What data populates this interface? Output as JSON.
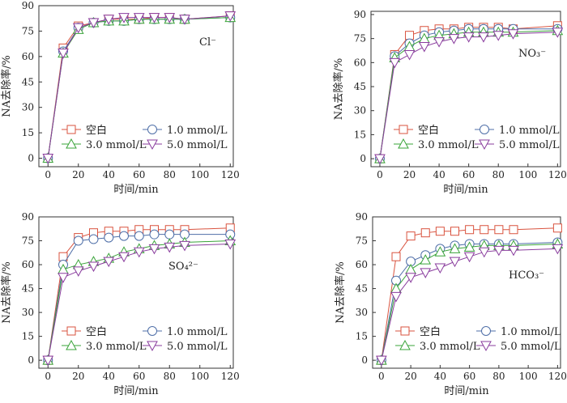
{
  "figure": {
    "background": "#ffffff"
  },
  "styles": {
    "blank": {
      "color": "#d9533f",
      "marker": "square"
    },
    "c1": {
      "color": "#4f6fa8",
      "marker": "circle"
    },
    "c3": {
      "color": "#3aa43a",
      "marker": "triangle-up"
    },
    "c5": {
      "color": "#8a3d9e",
      "marker": "triangle-down"
    }
  },
  "chart_data": [
    {
      "type": "line",
      "ion_label": "Cl⁻",
      "xlabel": "时间/min",
      "ylabel": "NA去除率/%",
      "xlim": [
        -6,
        122
      ],
      "ylim": [
        -5,
        90
      ],
      "xticks": [
        0,
        20,
        40,
        60,
        80,
        100,
        120
      ],
      "yticks": [
        0,
        15,
        30,
        45,
        60,
        75,
        90
      ],
      "legend_position": "lower-right",
      "x": [
        0,
        10,
        20,
        30,
        40,
        50,
        60,
        70,
        80,
        90,
        120
      ],
      "series": [
        {
          "name": "空白",
          "style": "blank",
          "values": [
            0,
            65,
            78,
            80,
            82,
            82,
            82,
            83,
            83,
            82,
            84
          ]
        },
        {
          "name": "1.0 mmol/L",
          "style": "c1",
          "values": [
            0,
            63,
            77,
            80,
            81,
            81,
            82,
            82,
            82,
            82,
            83
          ]
        },
        {
          "name": "3.0 mmol/L",
          "style": "c3",
          "values": [
            0,
            62,
            76,
            80,
            81,
            81,
            82,
            82,
            82,
            82,
            83
          ]
        },
        {
          "name": "5.0 mmol/L",
          "style": "c5",
          "values": [
            0,
            62,
            77,
            80,
            82,
            83,
            83,
            83,
            83,
            82,
            84
          ]
        }
      ]
    },
    {
      "type": "line",
      "ion_label": "NO₃⁻",
      "xlabel": "时间/min",
      "ylabel": "NA去除率/%",
      "xlim": [
        -6,
        122
      ],
      "ylim": [
        -5,
        92
      ],
      "xticks": [
        0,
        20,
        40,
        60,
        80,
        100,
        120
      ],
      "yticks": [
        0,
        15,
        30,
        45,
        60,
        75,
        90
      ],
      "legend_position": "lower-right",
      "x": [
        0,
        10,
        20,
        30,
        40,
        50,
        60,
        70,
        80,
        90,
        120
      ],
      "series": [
        {
          "name": "空白",
          "style": "blank",
          "values": [
            0,
            65,
            77,
            80,
            81,
            81,
            82,
            82,
            82,
            81,
            83
          ]
        },
        {
          "name": "1.0 mmol/L",
          "style": "c1",
          "values": [
            0,
            64,
            72,
            77,
            79,
            80,
            81,
            81,
            81,
            81,
            81
          ]
        },
        {
          "name": "3.0 mmol/L",
          "style": "c3",
          "values": [
            0,
            63,
            70,
            75,
            77,
            78,
            79,
            79,
            79,
            79,
            80
          ]
        },
        {
          "name": "5.0 mmol/L",
          "style": "c5",
          "values": [
            0,
            60,
            65,
            70,
            73,
            75,
            76,
            76,
            77,
            78,
            79
          ]
        }
      ]
    },
    {
      "type": "line",
      "ion_label": "SO₄²⁻",
      "xlabel": "时间/min",
      "ylabel": "NA去除率/%",
      "xlim": [
        -6,
        122
      ],
      "ylim": [
        -5,
        90
      ],
      "xticks": [
        0,
        20,
        40,
        60,
        80,
        100,
        120
      ],
      "yticks": [
        0,
        15,
        30,
        45,
        60,
        75,
        90
      ],
      "legend_position": "lower-right",
      "x": [
        0,
        10,
        20,
        30,
        40,
        50,
        60,
        70,
        80,
        90,
        120
      ],
      "series": [
        {
          "name": "空白",
          "style": "blank",
          "values": [
            0,
            65,
            77,
            80,
            81,
            81,
            82,
            82,
            82,
            82,
            83
          ]
        },
        {
          "name": "1.0 mmol/L",
          "style": "c1",
          "values": [
            0,
            60,
            75,
            76,
            77,
            78,
            78,
            79,
            79,
            79,
            79
          ]
        },
        {
          "name": "3.0 mmol/L",
          "style": "c3",
          "values": [
            0,
            57,
            60,
            62,
            64,
            68,
            70,
            72,
            73,
            74,
            75
          ]
        },
        {
          "name": "5.0 mmol/L",
          "style": "c5",
          "values": [
            0,
            52,
            56,
            59,
            62,
            65,
            68,
            70,
            71,
            72,
            73
          ]
        }
      ]
    },
    {
      "type": "line",
      "ion_label": "HCO₃⁻",
      "xlabel": "时间/min",
      "ylabel": "NA去除率/%",
      "xlim": [
        -6,
        122
      ],
      "ylim": [
        -5,
        90
      ],
      "xticks": [
        0,
        20,
        40,
        60,
        80,
        100,
        120
      ],
      "yticks": [
        0,
        15,
        30,
        45,
        60,
        75,
        90
      ],
      "legend_position": "lower-right",
      "x": [
        0,
        10,
        20,
        30,
        40,
        50,
        60,
        70,
        80,
        90,
        120
      ],
      "series": [
        {
          "name": "空白",
          "style": "blank",
          "values": [
            0,
            65,
            78,
            80,
            81,
            81,
            82,
            82,
            82,
            82,
            83
          ]
        },
        {
          "name": "1.0 mmol/L",
          "style": "c1",
          "values": [
            0,
            50,
            62,
            66,
            70,
            72,
            73,
            73,
            73,
            73,
            74
          ]
        },
        {
          "name": "3.0 mmol/L",
          "style": "c3",
          "values": [
            0,
            45,
            57,
            63,
            68,
            70,
            71,
            72,
            72,
            72,
            73
          ]
        },
        {
          "name": "5.0 mmol/L",
          "style": "c5",
          "values": [
            0,
            40,
            52,
            55,
            58,
            62,
            65,
            68,
            69,
            69,
            70
          ]
        }
      ]
    }
  ]
}
